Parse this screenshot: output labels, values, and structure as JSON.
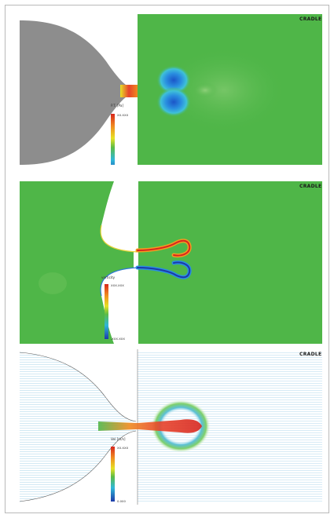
{
  "panels": [
    {
      "id": "pressure",
      "logo": "CRADLE",
      "colorbar": {
        "title": "P.T. [Pa]",
        "max": "XX.XXX",
        "min": ""
      }
    },
    {
      "id": "vorticity",
      "logo": "CRADLE",
      "colorbar": {
        "title": "vorticity",
        "max": "XXX.XXX",
        "min": "-XXX.XXX"
      }
    },
    {
      "id": "velocity",
      "logo": "CRADLE",
      "colorbar": {
        "title": "Vel [m/s]",
        "max": "XX.XXX",
        "min": "0.000"
      }
    }
  ],
  "colors": {
    "field_green": "#4fb648",
    "nozzle_gray": "#8d8d8d",
    "vector_blue": "#8ec8e6",
    "jet_red": "#e8432b"
  }
}
